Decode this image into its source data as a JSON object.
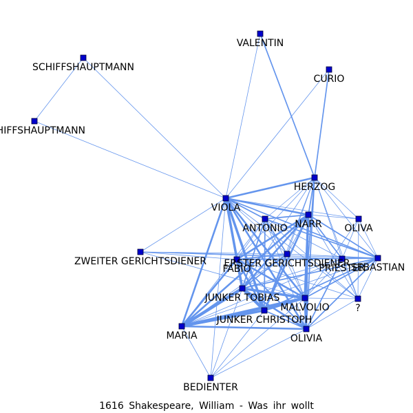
{
  "caption": "1616 Shakespeare, William - Was ihr wollt",
  "colors": {
    "edge": "#6495ED",
    "node_fill": "#0000CC",
    "node_stroke": "#000033",
    "label": "#000000"
  },
  "nodes": [
    {
      "id": "valentin",
      "label": "VALENTIN"
    },
    {
      "id": "schiff1",
      "label": "SCHIFFSHAUPTMANN"
    },
    {
      "id": "curio",
      "label": "CURIO"
    },
    {
      "id": "schiff2",
      "label": "SCHIFFSHAUPTMANN"
    },
    {
      "id": "herzog",
      "label": "HERZOG"
    },
    {
      "id": "viola",
      "label": "VIOLA"
    },
    {
      "id": "narr",
      "label": "NARR"
    },
    {
      "id": "antonio",
      "label": "ANTONIO"
    },
    {
      "id": "oliva",
      "label": "OLIVA"
    },
    {
      "id": "zweiter",
      "label": "ZWEITER GERICHTSDIENER"
    },
    {
      "id": "erster",
      "label": "ERSTER GERICHTSDIENER"
    },
    {
      "id": "fabio",
      "label": "FABIO"
    },
    {
      "id": "priester",
      "label": "PRIESTER"
    },
    {
      "id": "sebastian",
      "label": "SEBASTIAN"
    },
    {
      "id": "tobias",
      "label": "JUNKER TOBIAS"
    },
    {
      "id": "malvolio",
      "label": "MALVOLIO"
    },
    {
      "id": "question",
      "label": "?"
    },
    {
      "id": "christoph",
      "label": "JUNKER CHRISTOPH"
    },
    {
      "id": "maria",
      "label": "MARIA"
    },
    {
      "id": "olivia",
      "label": "OLIVIA"
    },
    {
      "id": "bedienter",
      "label": "BEDIENTER"
    }
  ],
  "edges": [
    [
      "valentin",
      "viola",
      1
    ],
    [
      "valentin",
      "herzog",
      2
    ],
    [
      "curio",
      "herzog",
      2
    ],
    [
      "curio",
      "viola",
      1
    ],
    [
      "schiff1",
      "schiff2",
      1
    ],
    [
      "schiff1",
      "viola",
      1
    ],
    [
      "schiff2",
      "viola",
      1
    ],
    [
      "herzog",
      "viola",
      3
    ],
    [
      "herzog",
      "narr",
      2
    ],
    [
      "herzog",
      "antonio",
      1
    ],
    [
      "herzog",
      "oliva",
      1
    ],
    [
      "herzog",
      "erster",
      1
    ],
    [
      "herzog",
      "fabio",
      1
    ],
    [
      "herzog",
      "priester",
      1
    ],
    [
      "herzog",
      "sebastian",
      1
    ],
    [
      "herzog",
      "tobias",
      1
    ],
    [
      "herzog",
      "malvolio",
      2
    ],
    [
      "herzog",
      "question",
      1
    ],
    [
      "herzog",
      "christoph",
      1
    ],
    [
      "herzog",
      "olivia",
      2
    ],
    [
      "viola",
      "narr",
      3
    ],
    [
      "viola",
      "antonio",
      2
    ],
    [
      "viola",
      "oliva",
      1
    ],
    [
      "viola",
      "zweiter",
      1
    ],
    [
      "viola",
      "erster",
      1
    ],
    [
      "viola",
      "fabio",
      3
    ],
    [
      "viola",
      "priester",
      1
    ],
    [
      "viola",
      "sebastian",
      2
    ],
    [
      "viola",
      "tobias",
      4
    ],
    [
      "viola",
      "malvolio",
      3
    ],
    [
      "viola",
      "question",
      1
    ],
    [
      "viola",
      "christoph",
      4
    ],
    [
      "viola",
      "maria",
      3
    ],
    [
      "viola",
      "olivia",
      3
    ],
    [
      "viola",
      "bedienter",
      1
    ],
    [
      "narr",
      "antonio",
      2
    ],
    [
      "narr",
      "oliva",
      1
    ],
    [
      "narr",
      "erster",
      1
    ],
    [
      "narr",
      "fabio",
      3
    ],
    [
      "narr",
      "priester",
      2
    ],
    [
      "narr",
      "sebastian",
      2
    ],
    [
      "narr",
      "tobias",
      3
    ],
    [
      "narr",
      "malvolio",
      4
    ],
    [
      "narr",
      "question",
      1
    ],
    [
      "narr",
      "christoph",
      3
    ],
    [
      "narr",
      "maria",
      3
    ],
    [
      "narr",
      "olivia",
      2
    ],
    [
      "antonio",
      "erster",
      2
    ],
    [
      "antonio",
      "fabio",
      1
    ],
    [
      "antonio",
      "sebastian",
      2
    ],
    [
      "antonio",
      "tobias",
      2
    ],
    [
      "antonio",
      "malvolio",
      1
    ],
    [
      "antonio",
      "christoph",
      2
    ],
    [
      "antonio",
      "maria",
      1
    ],
    [
      "antonio",
      "olivia",
      1
    ],
    [
      "antonio",
      "question",
      1
    ],
    [
      "oliva",
      "sebastian",
      1
    ],
    [
      "oliva",
      "malvolio",
      1
    ],
    [
      "oliva",
      "question",
      1
    ],
    [
      "oliva",
      "priester",
      1
    ],
    [
      "zweiter",
      "erster",
      1
    ],
    [
      "zweiter",
      "fabio",
      1
    ],
    [
      "zweiter",
      "sebastian",
      1
    ],
    [
      "zweiter",
      "priester",
      1
    ],
    [
      "zweiter",
      "malvolio",
      1
    ],
    [
      "erster",
      "fabio",
      2
    ],
    [
      "erster",
      "sebastian",
      1
    ],
    [
      "erster",
      "tobias",
      2
    ],
    [
      "erster",
      "christoph",
      2
    ],
    [
      "erster",
      "malvolio",
      1
    ],
    [
      "erster",
      "maria",
      1
    ],
    [
      "fabio",
      "priester",
      1
    ],
    [
      "fabio",
      "sebastian",
      2
    ],
    [
      "fabio",
      "tobias",
      4
    ],
    [
      "fabio",
      "malvolio",
      3
    ],
    [
      "fabio",
      "christoph",
      3
    ],
    [
      "fabio",
      "maria",
      3
    ],
    [
      "fabio",
      "olivia",
      2
    ],
    [
      "fabio",
      "question",
      1
    ],
    [
      "priester",
      "sebastian",
      1
    ],
    [
      "priester",
      "malvolio",
      1
    ],
    [
      "priester",
      "olivia",
      2
    ],
    [
      "priester",
      "question",
      1
    ],
    [
      "priester",
      "tobias",
      1
    ],
    [
      "priester",
      "maria",
      1
    ],
    [
      "sebastian",
      "tobias",
      2
    ],
    [
      "sebastian",
      "malvolio",
      2
    ],
    [
      "sebastian",
      "olivia",
      2
    ],
    [
      "sebastian",
      "christoph",
      2
    ],
    [
      "sebastian",
      "maria",
      1
    ],
    [
      "sebastian",
      "question",
      1
    ],
    [
      "tobias",
      "malvolio",
      4
    ],
    [
      "tobias",
      "christoph",
      5
    ],
    [
      "tobias",
      "maria",
      5
    ],
    [
      "tobias",
      "olivia",
      3
    ],
    [
      "tobias",
      "bedienter",
      1
    ],
    [
      "malvolio",
      "christoph",
      3
    ],
    [
      "malvolio",
      "maria",
      5
    ],
    [
      "malvolio",
      "olivia",
      4
    ],
    [
      "malvolio",
      "question",
      1
    ],
    [
      "malvolio",
      "bedienter",
      1
    ],
    [
      "christoph",
      "maria",
      4
    ],
    [
      "christoph",
      "olivia",
      2
    ],
    [
      "christoph",
      "bedienter",
      1
    ],
    [
      "maria",
      "olivia",
      3
    ],
    [
      "maria",
      "bedienter",
      1
    ],
    [
      "olivia",
      "bedienter",
      1
    ],
    [
      "olivia",
      "question",
      1
    ]
  ]
}
